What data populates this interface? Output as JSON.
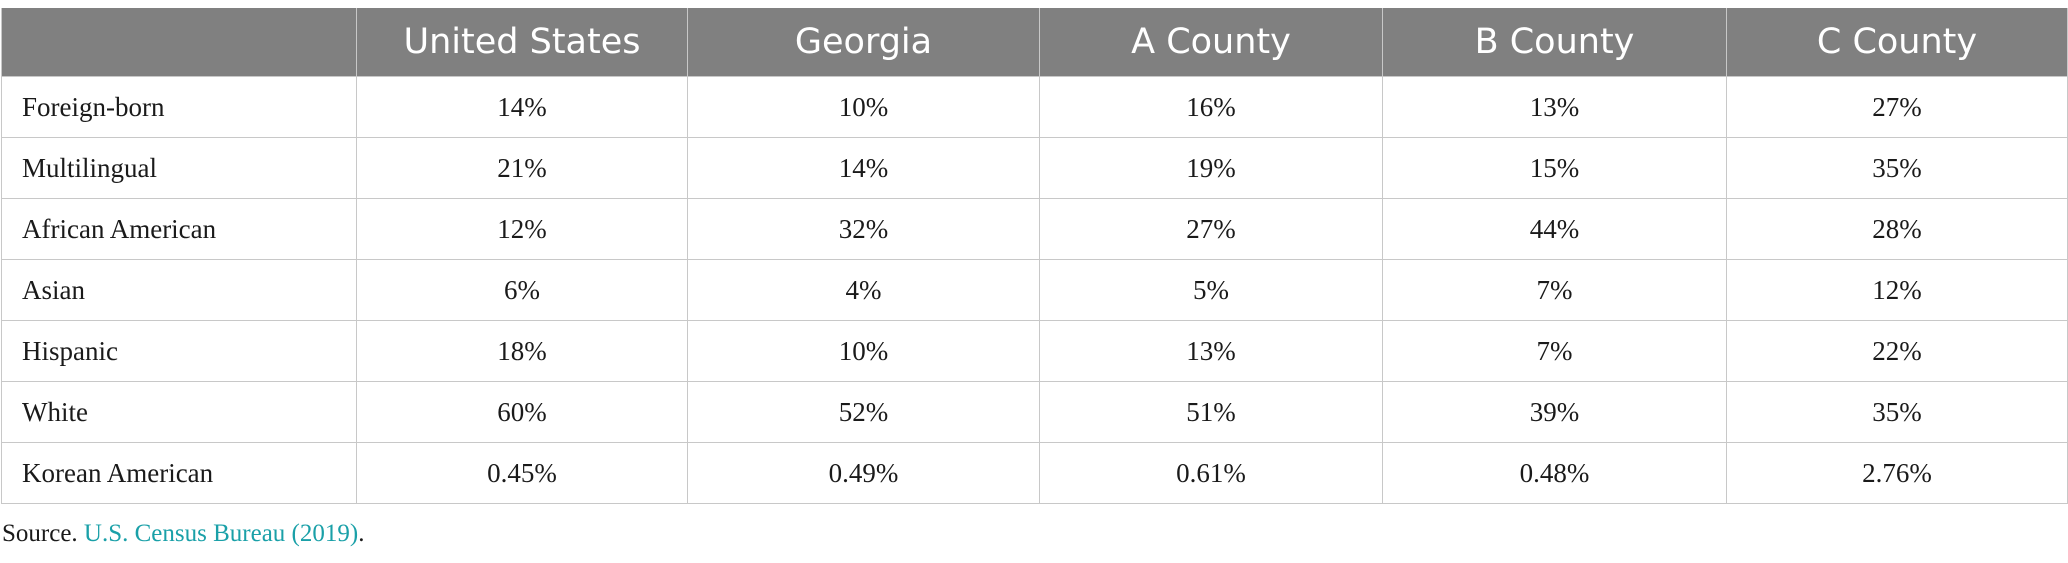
{
  "table": {
    "columns": [
      "",
      "United States",
      "Georgia",
      "A County",
      "B County",
      "C County"
    ],
    "rows": [
      {
        "label": "Foreign-born",
        "values": [
          "14%",
          "10%",
          "16%",
          "13%",
          "27%"
        ]
      },
      {
        "label": "Multilingual",
        "values": [
          "21%",
          "14%",
          "19%",
          "15%",
          "35%"
        ]
      },
      {
        "label": "African American",
        "values": [
          "12%",
          "32%",
          "27%",
          "44%",
          "28%"
        ]
      },
      {
        "label": "Asian",
        "values": [
          "6%",
          "4%",
          "5%",
          "7%",
          "12%"
        ]
      },
      {
        "label": "Hispanic",
        "values": [
          "18%",
          "10%",
          "13%",
          "7%",
          "22%"
        ]
      },
      {
        "label": "White",
        "values": [
          "60%",
          "52%",
          "51%",
          "39%",
          "35%"
        ]
      },
      {
        "label": "Korean American",
        "values": [
          "0.45%",
          "0.49%",
          "0.61%",
          "0.48%",
          "2.76%"
        ]
      }
    ]
  },
  "source": {
    "prefix": "Source. ",
    "link_text": "U.S. Census Bureau (2019)",
    "suffix": ".",
    "link_color": "#1aa0a8"
  },
  "colors": {
    "header_bg": "#808080",
    "header_text": "#ffffff",
    "border": "#c8c8c8"
  }
}
